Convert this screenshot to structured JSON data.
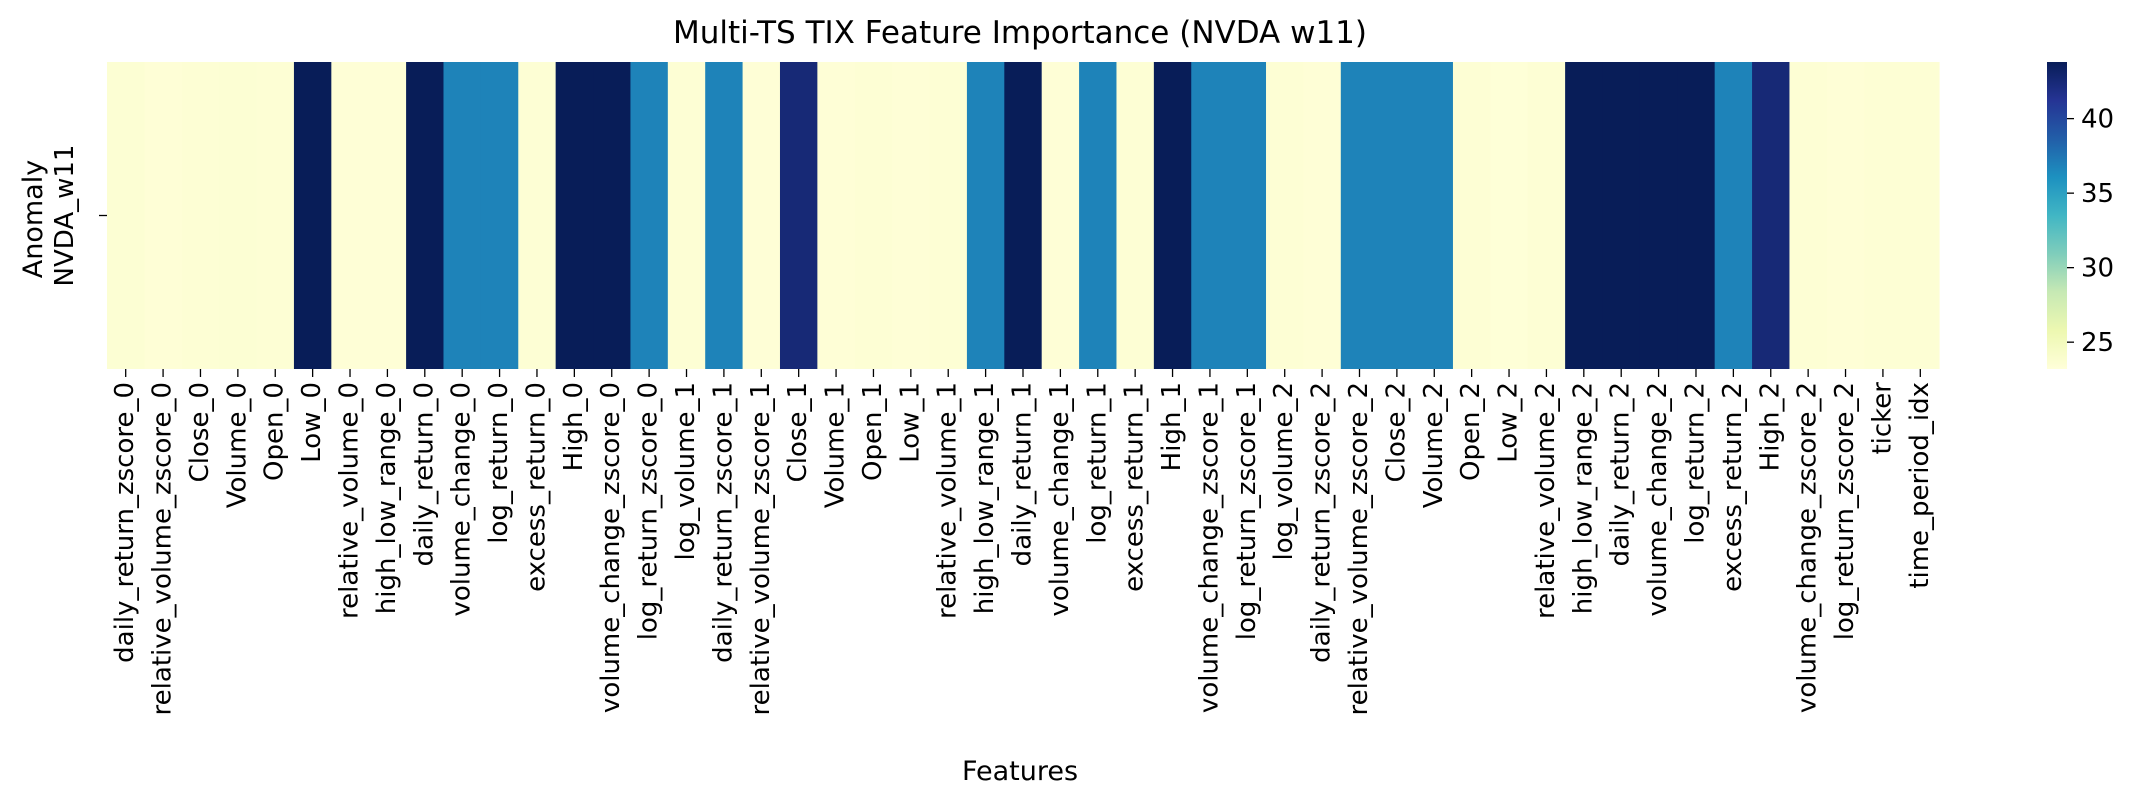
{
  "chart_data": {
    "type": "heatmap",
    "title": "Multi-TS TIX Feature Importance (NVDA w11)",
    "xlabel": "Features",
    "ylabel": "Anomaly",
    "rows": [
      "NVDA_w11"
    ],
    "columns": [
      "daily_return_zscore_0",
      "relative_volume_zscore_0",
      "Close_0",
      "Volume_0",
      "Open_0",
      "Low_0",
      "relative_volume_0",
      "high_low_range_0",
      "daily_return_0",
      "volume_change_0",
      "log_return_0",
      "excess_return_0",
      "High_0",
      "volume_change_zscore_0",
      "log_return_zscore_0",
      "log_volume_1",
      "daily_return_zscore_1",
      "relative_volume_zscore_1",
      "Close_1",
      "Volume_1",
      "Open_1",
      "Low_1",
      "relative_volume_1",
      "high_low_range_1",
      "daily_return_1",
      "volume_change_1",
      "log_return_1",
      "excess_return_1",
      "High_1",
      "volume_change_zscore_1",
      "log_return_zscore_1",
      "log_volume_2",
      "daily_return_zscore_2",
      "relative_volume_zscore_2",
      "Close_2",
      "Volume_2",
      "Open_2",
      "Low_2",
      "relative_volume_2",
      "high_low_range_2",
      "daily_return_2",
      "volume_change_2",
      "log_return_2",
      "excess_return_2",
      "High_2",
      "volume_change_zscore_2",
      "log_return_zscore_2",
      "ticker",
      "time_period_idx"
    ],
    "values": [
      [
        23.6,
        23.4,
        23.5,
        23.6,
        23.5,
        44.0,
        23.4,
        23.4,
        44.0,
        36.8,
        36.8,
        23.5,
        44.0,
        44.0,
        36.8,
        23.5,
        36.8,
        23.4,
        42.5,
        23.4,
        23.5,
        23.4,
        23.5,
        36.8,
        44.0,
        23.4,
        36.8,
        23.5,
        44.0,
        36.8,
        36.8,
        23.5,
        23.4,
        36.8,
        36.8,
        36.8,
        23.5,
        23.3,
        23.5,
        44.0,
        44.0,
        44.0,
        44.0,
        36.8,
        42.5,
        23.5,
        23.4,
        23.5,
        23.5
      ]
    ],
    "colorbar": {
      "ticks": [
        25,
        30,
        35,
        40
      ],
      "vmin": 23.2,
      "vmax": 43.8,
      "colormap": "YlGnBu",
      "stops": [
        "#ffffd9",
        "#edf8b1",
        "#c7e9b4",
        "#7fcdbb",
        "#41b6c4",
        "#1d91c0",
        "#225ea8",
        "#253494",
        "#081d58"
      ]
    }
  }
}
